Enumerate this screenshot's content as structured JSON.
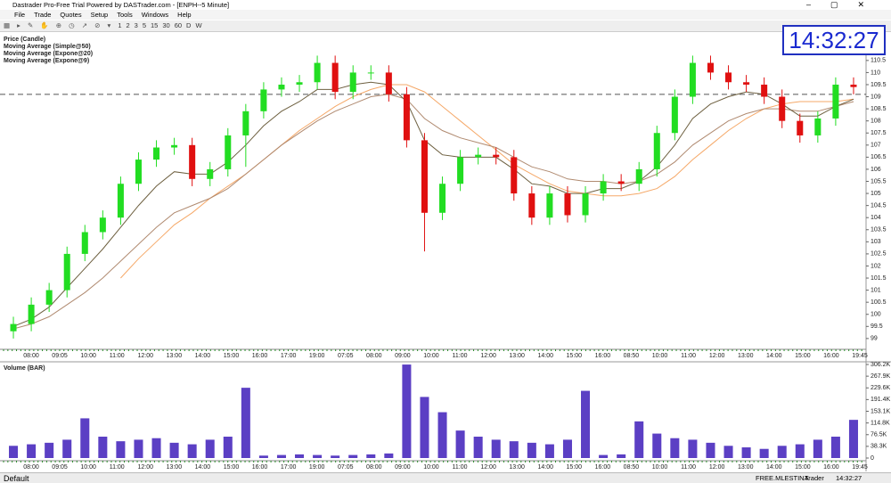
{
  "window": {
    "title": "Dastrader Pro-Free Trial Powered by DASTrader.com - [ENPH--5 Minute]",
    "menu": [
      "File",
      "Trade",
      "Quotes",
      "Setup",
      "Tools",
      "Windows",
      "Help"
    ],
    "toolbar": [
      "1",
      "2",
      "3",
      "5",
      "15",
      "30",
      "60",
      "D",
      "W"
    ]
  },
  "clock": "14:32:27",
  "status": [
    "Default",
    "FREE.MLESTINA",
    "Trader"
  ],
  "chart_data": [
    {
      "type": "candlestick",
      "name": "Price (Candle)",
      "name_color": "#1f3fd0",
      "up_color": "#22dd22",
      "down_color": "#e01010",
      "open": [
        99.3,
        99.6,
        100.4,
        101,
        102.5,
        103.4,
        104,
        105.4,
        106.4,
        106.9,
        107,
        105.6,
        106,
        107.4,
        108.4,
        109.3,
        109.5,
        109.6,
        110.4,
        109.2,
        110,
        110,
        109.1,
        107.2,
        104.2,
        105.4,
        106.5,
        106.6,
        106.5,
        105,
        104,
        105,
        104.1,
        105,
        105.5,
        105.4,
        106,
        107.5,
        109,
        110.4,
        110,
        109.6,
        109.5,
        109,
        108,
        107.4,
        108.1,
        109.5
      ],
      "high": [
        99.9,
        100.7,
        101.3,
        102.8,
        103.7,
        104.3,
        105.7,
        106.7,
        107.2,
        107.3,
        107.3,
        106.3,
        107.7,
        108.7,
        109.6,
        109.8,
        109.9,
        110.7,
        110.7,
        110.3,
        110.3,
        110.3,
        109.4,
        107.5,
        105.7,
        106.8,
        106.9,
        106.9,
        106.8,
        105.3,
        105.3,
        105.3,
        105.3,
        105.8,
        105.8,
        106.3,
        107.8,
        109.3,
        110.7,
        110.7,
        110.3,
        109.9,
        109.8,
        109.3,
        108.3,
        108.4,
        109.8,
        109.8
      ],
      "low": [
        99.0,
        99.3,
        100.1,
        100.7,
        102.2,
        103.1,
        103.7,
        105.1,
        106.1,
        106.6,
        105.3,
        105.3,
        105.7,
        106.1,
        108.1,
        109.0,
        109.2,
        109.3,
        108.9,
        108.9,
        109.7,
        108.8,
        106.9,
        102.6,
        103.9,
        105.1,
        106.2,
        106.2,
        104.7,
        103.7,
        103.7,
        103.8,
        103.8,
        104.7,
        105.1,
        105.1,
        105.7,
        107.2,
        108.7,
        109.7,
        109.3,
        109.2,
        108.7,
        107.7,
        107.1,
        107.1,
        107.8,
        109.1
      ],
      "close": [
        99.6,
        100.4,
        101,
        102.5,
        103.4,
        104,
        105.4,
        106.4,
        106.9,
        107,
        105.6,
        106,
        107.4,
        108.4,
        109.3,
        109.5,
        109.6,
        110.4,
        109.2,
        110,
        110,
        109.1,
        107.2,
        104.2,
        105.4,
        106.5,
        106.6,
        106.5,
        105,
        104,
        105,
        104.1,
        105,
        105.5,
        105.4,
        106,
        107.5,
        109,
        110.4,
        110,
        109.6,
        109.5,
        109,
        108,
        107.4,
        108.1,
        109.5,
        109.4
      ],
      "series": [
        {
          "name": "Moving Average (Simple@50)",
          "color": "#f08020",
          "line_color": "#f5a868",
          "values": [
            null,
            null,
            null,
            null,
            null,
            null,
            101.5,
            102.3,
            103,
            103.7,
            104.2,
            104.8,
            105.3,
            105.8,
            106.4,
            107,
            107.6,
            108.1,
            108.6,
            109,
            109.3,
            109.5,
            109.5,
            109.2,
            108.6,
            108,
            107.4,
            106.8,
            106.2,
            105.8,
            105.4,
            105.1,
            105,
            104.9,
            104.9,
            105,
            105.2,
            105.7,
            106.4,
            107,
            107.6,
            108.1,
            108.5,
            108.7,
            108.8,
            108.8,
            108.8,
            108.9
          ]
        },
        {
          "name": "Moving Average (Expone@20)",
          "color": "#8b5a2b",
          "line_color": "#b08a70",
          "values": [
            99.4,
            99.6,
            99.9,
            100.4,
            100.9,
            101.5,
            102.2,
            102.9,
            103.6,
            104.2,
            104.5,
            104.8,
            105.2,
            105.8,
            106.4,
            107,
            107.5,
            108,
            108.4,
            108.7,
            109,
            109.1,
            108.9,
            108.1,
            107.6,
            107.3,
            107.1,
            106.9,
            106.5,
            106.1,
            105.9,
            105.6,
            105.5,
            105.5,
            105.4,
            105.5,
            105.8,
            106.3,
            107,
            107.5,
            108,
            108.3,
            108.5,
            108.5,
            108.4,
            108.4,
            108.6,
            108.8
          ]
        },
        {
          "name": "Moving Average (Expone@9)",
          "color": "#8b7d2b",
          "line_color": "#6e6040",
          "values": [
            99.5,
            99.8,
            100.3,
            101.1,
            101.9,
            102.7,
            103.6,
            104.5,
            105.3,
            105.9,
            105.8,
            105.8,
            106.3,
            107,
            107.8,
            108.4,
            108.8,
            109.3,
            109.3,
            109.5,
            109.6,
            109.5,
            108.8,
            107.2,
            106.6,
            106.5,
            106.5,
            106.5,
            106,
            105.4,
            105.3,
            105,
            105,
            105.2,
            105.2,
            105.5,
            106.1,
            107,
            108.1,
            108.7,
            109,
            109.2,
            109.1,
            108.7,
            108.2,
            108.2,
            108.6,
            108.9
          ]
        }
      ],
      "reference_line": 109.1,
      "ylim": [
        98.7,
        111.6
      ],
      "yticks": [
        99,
        99.5,
        100,
        100.5,
        101,
        101.5,
        102,
        102.5,
        103,
        103.5,
        104,
        104.5,
        105,
        105.5,
        106,
        106.5,
        107,
        107.5,
        108,
        108.5,
        109,
        109.5,
        110,
        110.5
      ],
      "time_labels": [
        "08:00",
        "09:05",
        "10:00",
        "11:00",
        "12:00",
        "13:00",
        "14:00",
        "15:00",
        "16:00",
        "17:00",
        "19:00",
        "07:05",
        "08:00",
        "09:00",
        "10:00",
        "11:00",
        "12:00",
        "13:00",
        "14:00",
        "15:00",
        "16:00",
        "08:50",
        "10:00",
        "11:00",
        "12:00",
        "13:00",
        "14:00",
        "15:00",
        "16:00",
        "19:45"
      ]
    },
    {
      "type": "bar",
      "title": "Volume (BAR)",
      "color": "#5b3fc4",
      "values": [
        40,
        45,
        50,
        60,
        130,
        70,
        55,
        60,
        65,
        50,
        45,
        60,
        70,
        230,
        8,
        10,
        12,
        10,
        8,
        10,
        12,
        15,
        306,
        200,
        150,
        90,
        70,
        60,
        55,
        50,
        45,
        60,
        220,
        10,
        12,
        120,
        80,
        65,
        60,
        50,
        40,
        35,
        30,
        40,
        45,
        60,
        70,
        125
      ],
      "ylim": [
        0,
        306.2
      ],
      "yticks": [
        {
          "value": 306.2,
          "label": "306.2K"
        },
        {
          "value": 267.9,
          "label": "267.9K"
        },
        {
          "value": 229.6,
          "label": "229.6K"
        },
        {
          "value": 191.4,
          "label": "191.4K"
        },
        {
          "value": 153.1,
          "label": "153.1K"
        },
        {
          "value": 114.8,
          "label": "114.8K"
        },
        {
          "value": 76.5,
          "label": "76.5K"
        },
        {
          "value": 38.3,
          "label": "38.3K"
        },
        0
      ]
    }
  ]
}
